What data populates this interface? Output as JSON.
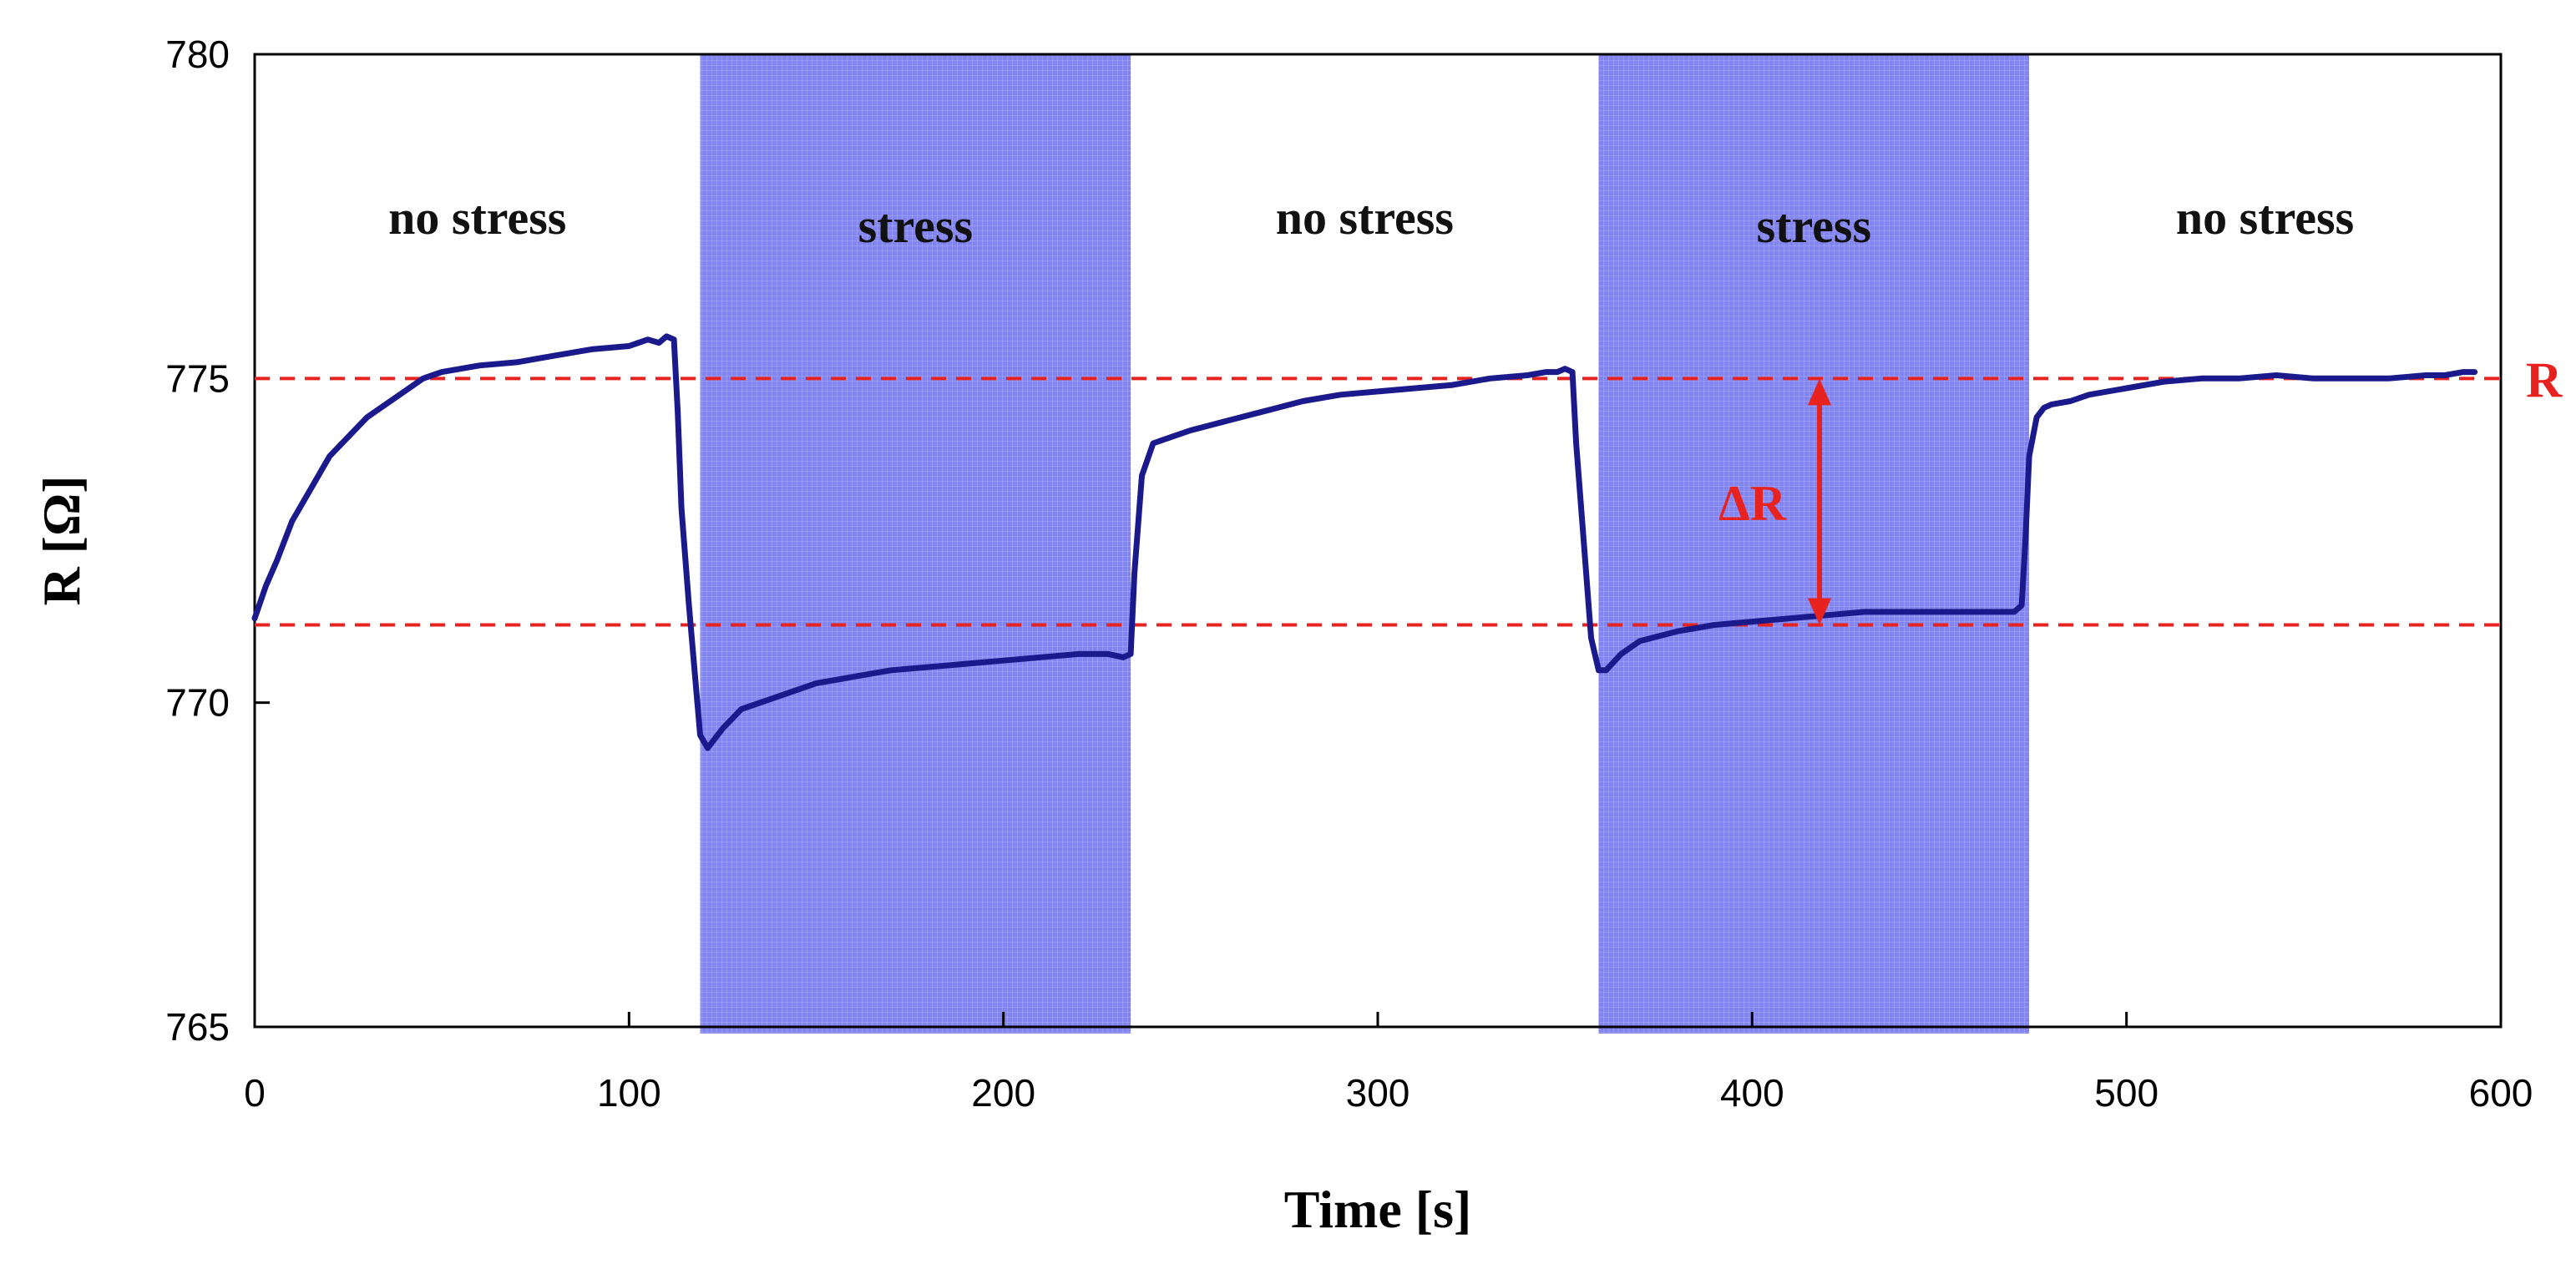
{
  "chart_data": {
    "type": "line",
    "xlabel": "Time [s]",
    "ylabel": "R [Ω]",
    "xlim": [
      0,
      600
    ],
    "ylim": [
      765,
      780
    ],
    "xticks": [
      0,
      100,
      200,
      300,
      400,
      500,
      600
    ],
    "yticks": [
      765,
      770,
      775,
      780
    ],
    "grid": false,
    "colors": {
      "line": "#1a1a8c",
      "stress_fill": "#7b7df2",
      "reference": "#e8231f"
    },
    "regions": [
      {
        "label": "no stress",
        "x_start": 0,
        "x_end": 119,
        "shaded": false
      },
      {
        "label": "stress",
        "x_start": 119,
        "x_end": 234,
        "shaded": true
      },
      {
        "label": "no stress",
        "x_start": 234,
        "x_end": 359,
        "shaded": false
      },
      {
        "label": "stress",
        "x_start": 359,
        "x_end": 474,
        "shaded": true
      },
      {
        "label": "no stress",
        "x_start": 474,
        "x_end": 600,
        "shaded": false
      }
    ],
    "reference_lines": [
      {
        "y": 775.0,
        "label": "R"
      },
      {
        "y": 771.2,
        "label": ""
      }
    ],
    "annotations": [
      {
        "text": "ΔR",
        "x": 418,
        "y_from": 771.2,
        "y_to": 775.0
      }
    ],
    "series": [
      {
        "x": [
          0,
          3,
          6,
          10,
          15,
          20,
          25,
          30,
          35,
          40,
          45,
          50,
          55,
          60,
          70,
          80,
          90,
          100,
          105,
          108,
          110,
          112,
          113,
          114,
          116,
          119,
          121,
          125,
          130,
          140,
          150,
          160,
          170,
          180,
          190,
          200,
          210,
          220,
          228,
          232,
          234,
          235,
          237,
          240,
          245,
          250,
          260,
          270,
          280,
          290,
          300,
          310,
          320,
          330,
          340,
          345,
          348,
          350,
          352,
          353,
          355,
          357,
          359,
          361,
          365,
          370,
          380,
          390,
          400,
          410,
          420,
          430,
          440,
          450,
          460,
          465,
          470,
          472,
          473,
          474,
          476,
          478,
          480,
          485,
          490,
          500,
          510,
          520,
          530,
          540,
          550,
          560,
          570,
          580,
          585,
          590,
          593
        ],
        "y": [
          771.3,
          771.8,
          772.2,
          772.8,
          773.3,
          773.8,
          774.1,
          774.4,
          774.6,
          774.8,
          775.0,
          775.1,
          775.15,
          775.2,
          775.25,
          775.35,
          775.45,
          775.5,
          775.6,
          775.55,
          775.65,
          775.6,
          774.5,
          773.0,
          771.5,
          769.5,
          769.3,
          769.6,
          769.9,
          770.1,
          770.3,
          770.4,
          770.5,
          770.55,
          770.6,
          770.65,
          770.7,
          770.75,
          770.75,
          770.7,
          770.75,
          772.0,
          773.5,
          774.0,
          774.1,
          774.2,
          774.35,
          774.5,
          774.65,
          774.75,
          774.8,
          774.85,
          774.9,
          775.0,
          775.05,
          775.1,
          775.1,
          775.15,
          775.1,
          774.0,
          772.5,
          771.0,
          770.5,
          770.5,
          770.75,
          770.95,
          771.1,
          771.2,
          771.25,
          771.3,
          771.35,
          771.4,
          771.4,
          771.4,
          771.4,
          771.4,
          771.4,
          771.5,
          772.5,
          773.8,
          774.4,
          774.55,
          774.6,
          774.65,
          774.75,
          774.85,
          774.95,
          775.0,
          775.0,
          775.05,
          775.0,
          775.0,
          775.0,
          775.05,
          775.05,
          775.1,
          775.1
        ]
      }
    ]
  }
}
